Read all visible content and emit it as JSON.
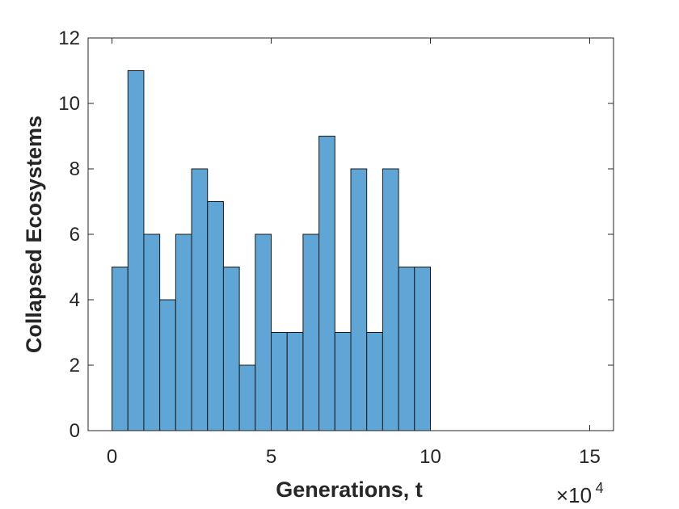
{
  "chart_data": {
    "type": "bar",
    "subtype": "histogram",
    "bin_width": 5000,
    "bin_edges": [
      0,
      5000,
      10000,
      15000,
      20000,
      25000,
      30000,
      35000,
      40000,
      45000,
      50000,
      55000,
      60000,
      65000,
      70000,
      75000,
      80000,
      85000,
      90000,
      95000,
      100000
    ],
    "values": [
      5,
      11,
      6,
      4,
      6,
      8,
      7,
      5,
      2,
      6,
      3,
      3,
      6,
      9,
      3,
      8,
      3,
      8,
      5,
      5
    ],
    "xlabel": "Generations, t",
    "ylabel": "Collapsed Ecosystems",
    "xlim": [
      -7500,
      157500
    ],
    "ylim": [
      0,
      12
    ],
    "x_ticks": [
      0,
      50000,
      100000,
      150000
    ],
    "x_tick_labels": [
      "0",
      "5",
      "10",
      "15"
    ],
    "x_exponent_base": "×10",
    "x_exponent_power": "4",
    "y_ticks": [
      0,
      2,
      4,
      6,
      8,
      10,
      12
    ],
    "y_tick_labels": [
      "0",
      "2",
      "4",
      "6",
      "8",
      "10",
      "12"
    ],
    "grid": false,
    "legend": "none",
    "bar_color": "#5fa5d6",
    "bar_edge_color": "#1a1a1a"
  }
}
